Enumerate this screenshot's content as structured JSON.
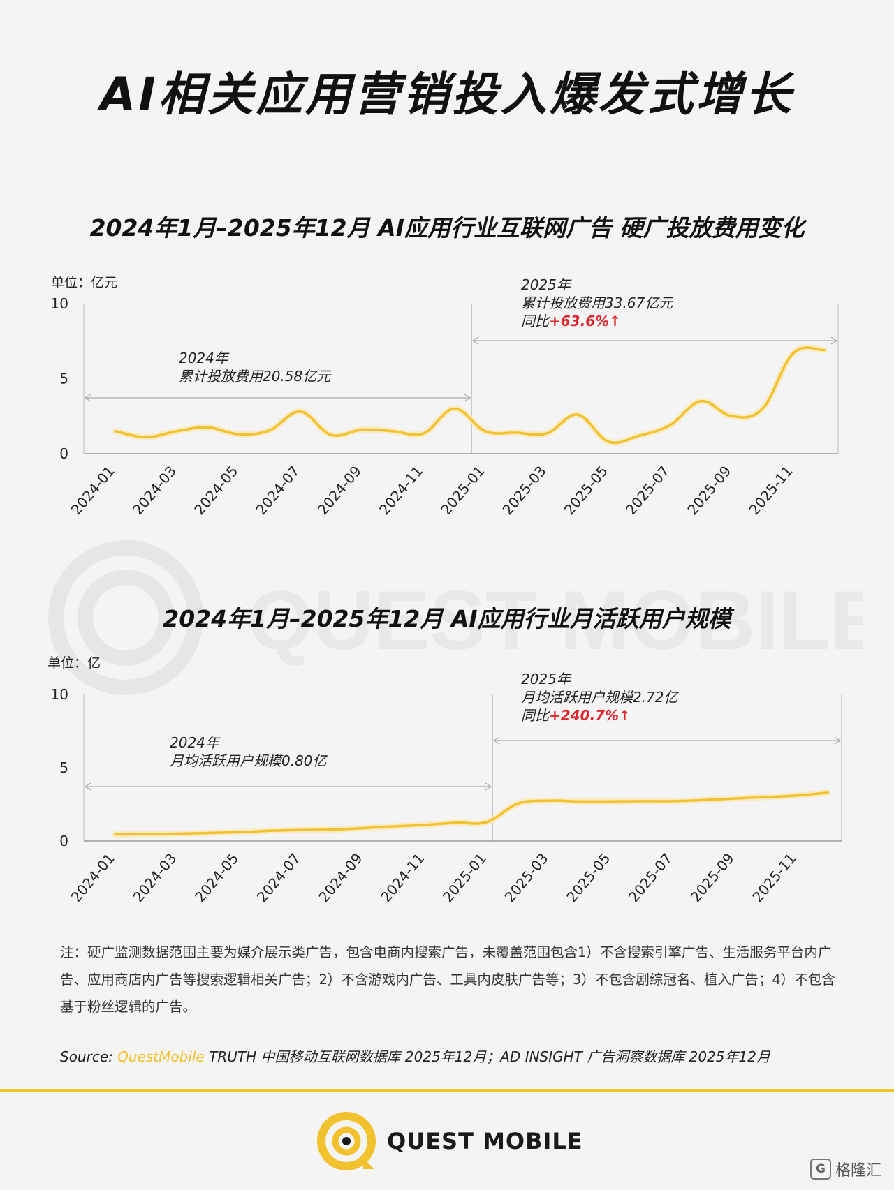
{
  "page": {
    "title": "AI相关应用营销投入爆发式增长",
    "watermark_text": "QUEST MOBILE"
  },
  "chart_data": [
    {
      "type": "line",
      "title": "2024年1月–2025年12月 AI应用行业互联网广告 硬广投放费用变化",
      "unit_label": "单位：亿元",
      "ylim": [
        0,
        10
      ],
      "yticks": [
        "0",
        "5",
        "10"
      ],
      "x": [
        "2024-01",
        "2024-02",
        "2024-03",
        "2024-04",
        "2024-05",
        "2024-06",
        "2024-07",
        "2024-08",
        "2024-09",
        "2024-10",
        "2024-11",
        "2024-12",
        "2025-01",
        "2025-02",
        "2025-03",
        "2025-04",
        "2025-05",
        "2025-06",
        "2025-07",
        "2025-08",
        "2025-09",
        "2025-10",
        "2025-11",
        "2025-12"
      ],
      "xtick_labels": [
        "2024-01",
        "2024-03",
        "2024-05",
        "2024-07",
        "2024-09",
        "2024-11",
        "2025-01",
        "2025-03",
        "2025-05",
        "2025-07",
        "2025-09",
        "2025-11"
      ],
      "series": [
        {
          "values": [
            1.5,
            1.1,
            1.5,
            1.75,
            1.3,
            1.55,
            2.8,
            1.25,
            1.6,
            1.5,
            1.35,
            3.0,
            1.5,
            1.4,
            1.35,
            2.6,
            0.8,
            1.2,
            1.9,
            3.5,
            2.5,
            3.0,
            6.7,
            6.9
          ]
        }
      ],
      "grid": false,
      "annotations": [
        {
          "lines": [
            "2024年",
            "累计投放费用20.58亿元"
          ],
          "change": ""
        },
        {
          "lines": [
            "2025年",
            "累计投放费用33.67亿元"
          ],
          "prefix": "同比",
          "change": "+63.6%↑"
        }
      ]
    },
    {
      "type": "line",
      "title": "2024年1月–2025年12月 AI应用行业月活跃用户规模",
      "unit_label": "单位：亿",
      "ylim": [
        0,
        10
      ],
      "yticks": [
        "0",
        "5",
        "10"
      ],
      "x": [
        "2024-01",
        "2024-02",
        "2024-03",
        "2024-04",
        "2024-05",
        "2024-06",
        "2024-07",
        "2024-08",
        "2024-09",
        "2024-10",
        "2024-11",
        "2024-12",
        "2025-01",
        "2025-02",
        "2025-03",
        "2025-04",
        "2025-05",
        "2025-06",
        "2025-07",
        "2025-08",
        "2025-09",
        "2025-10",
        "2025-11",
        "2025-12"
      ],
      "xtick_labels": [
        "2024-01",
        "2024-03",
        "2024-05",
        "2024-07",
        "2024-09",
        "2024-11",
        "2025-01",
        "2025-03",
        "2025-05",
        "2025-07",
        "2025-09",
        "2025-11"
      ],
      "series": [
        {
          "values": [
            0.45,
            0.47,
            0.5,
            0.55,
            0.6,
            0.7,
            0.75,
            0.78,
            0.88,
            1.0,
            1.1,
            1.25,
            1.3,
            2.55,
            2.75,
            2.7,
            2.7,
            2.72,
            2.72,
            2.8,
            2.9,
            3.0,
            3.1,
            3.3
          ]
        }
      ],
      "grid": false,
      "annotations": [
        {
          "lines": [
            "2024年",
            "月均活跃用户规模0.80亿"
          ],
          "change": ""
        },
        {
          "lines": [
            "2025年",
            "月均活跃用户规模2.72亿"
          ],
          "prefix": "同比",
          "change": "+240.7%↑"
        }
      ]
    }
  ],
  "note": "注：硬广监测数据范围主要为媒介展示类广告，包含电商内搜索广告，未覆盖范围包含1）不含搜索引擎广告、生活服务平台内广告、应用商店内广告等搜索逻辑相关广告；2）不含游戏内广告、工具内皮肤广告等；3）不包含剧综冠名、植入广告；4）不包含基于粉丝逻辑的广告。",
  "source": {
    "label": "Source:",
    "brand": "QuestMobile",
    "text": "TRUTH 中国移动互联网数据库 2025年12月；AD INSIGHT 广告洞察数据库 2025年12月"
  },
  "footer": {
    "logo_text": "QUEST MOBILE",
    "corner_text": "格隆汇",
    "corner_box": "G"
  },
  "colors": {
    "line": "#f2c12e",
    "accent_red": "#e0262c",
    "axis": "#999999"
  }
}
